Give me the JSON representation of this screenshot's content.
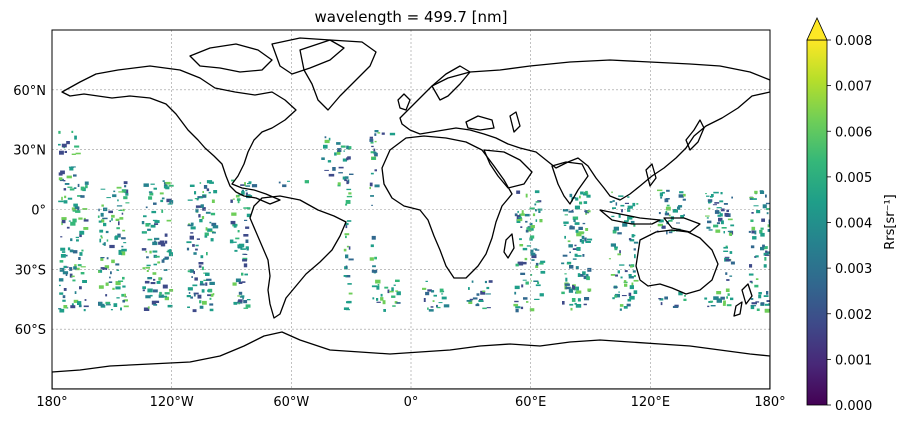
{
  "title": "wavelength = 499.7 [nm]",
  "map": {
    "projection": "PlateCarree",
    "lon_ticks": [
      {
        "value": -180,
        "label": "180°"
      },
      {
        "value": -120,
        "label": "120°W"
      },
      {
        "value": -60,
        "label": "60°W"
      },
      {
        "value": 0,
        "label": "0°"
      },
      {
        "value": 60,
        "label": "60°E"
      },
      {
        "value": 120,
        "label": "120°E"
      },
      {
        "value": 180,
        "label": "180°"
      }
    ],
    "lat_ticks": [
      {
        "value": 60,
        "label": "60°N"
      },
      {
        "value": 30,
        "label": "30°N"
      },
      {
        "value": 0,
        "label": "0°"
      },
      {
        "value": -30,
        "label": "30°S"
      },
      {
        "value": -60,
        "label": "60°S"
      }
    ],
    "extent": {
      "lon": [
        -180,
        180
      ],
      "lat": [
        -90,
        90
      ]
    },
    "gridlines": true,
    "coastlines": true
  },
  "colorbar": {
    "label": "Rrs[sr⁻¹]",
    "range": [
      0.0,
      0.008
    ],
    "extend": "max",
    "colormap": "viridis",
    "ticks": [
      {
        "value": 0.0,
        "label": "0.000"
      },
      {
        "value": 0.001,
        "label": "0.001"
      },
      {
        "value": 0.002,
        "label": "0.002"
      },
      {
        "value": 0.003,
        "label": "0.003"
      },
      {
        "value": 0.004,
        "label": "0.004"
      },
      {
        "value": 0.005,
        "label": "0.005"
      },
      {
        "value": 0.006,
        "label": "0.006"
      },
      {
        "value": 0.007,
        "label": "0.007"
      },
      {
        "value": 0.008,
        "label": "0.008"
      }
    ],
    "colors": [
      "#440154",
      "#482878",
      "#3e4a89",
      "#31688e",
      "#26828e",
      "#1f9e89",
      "#35b779",
      "#6ece58",
      "#b5de2b",
      "#fde725"
    ]
  }
}
